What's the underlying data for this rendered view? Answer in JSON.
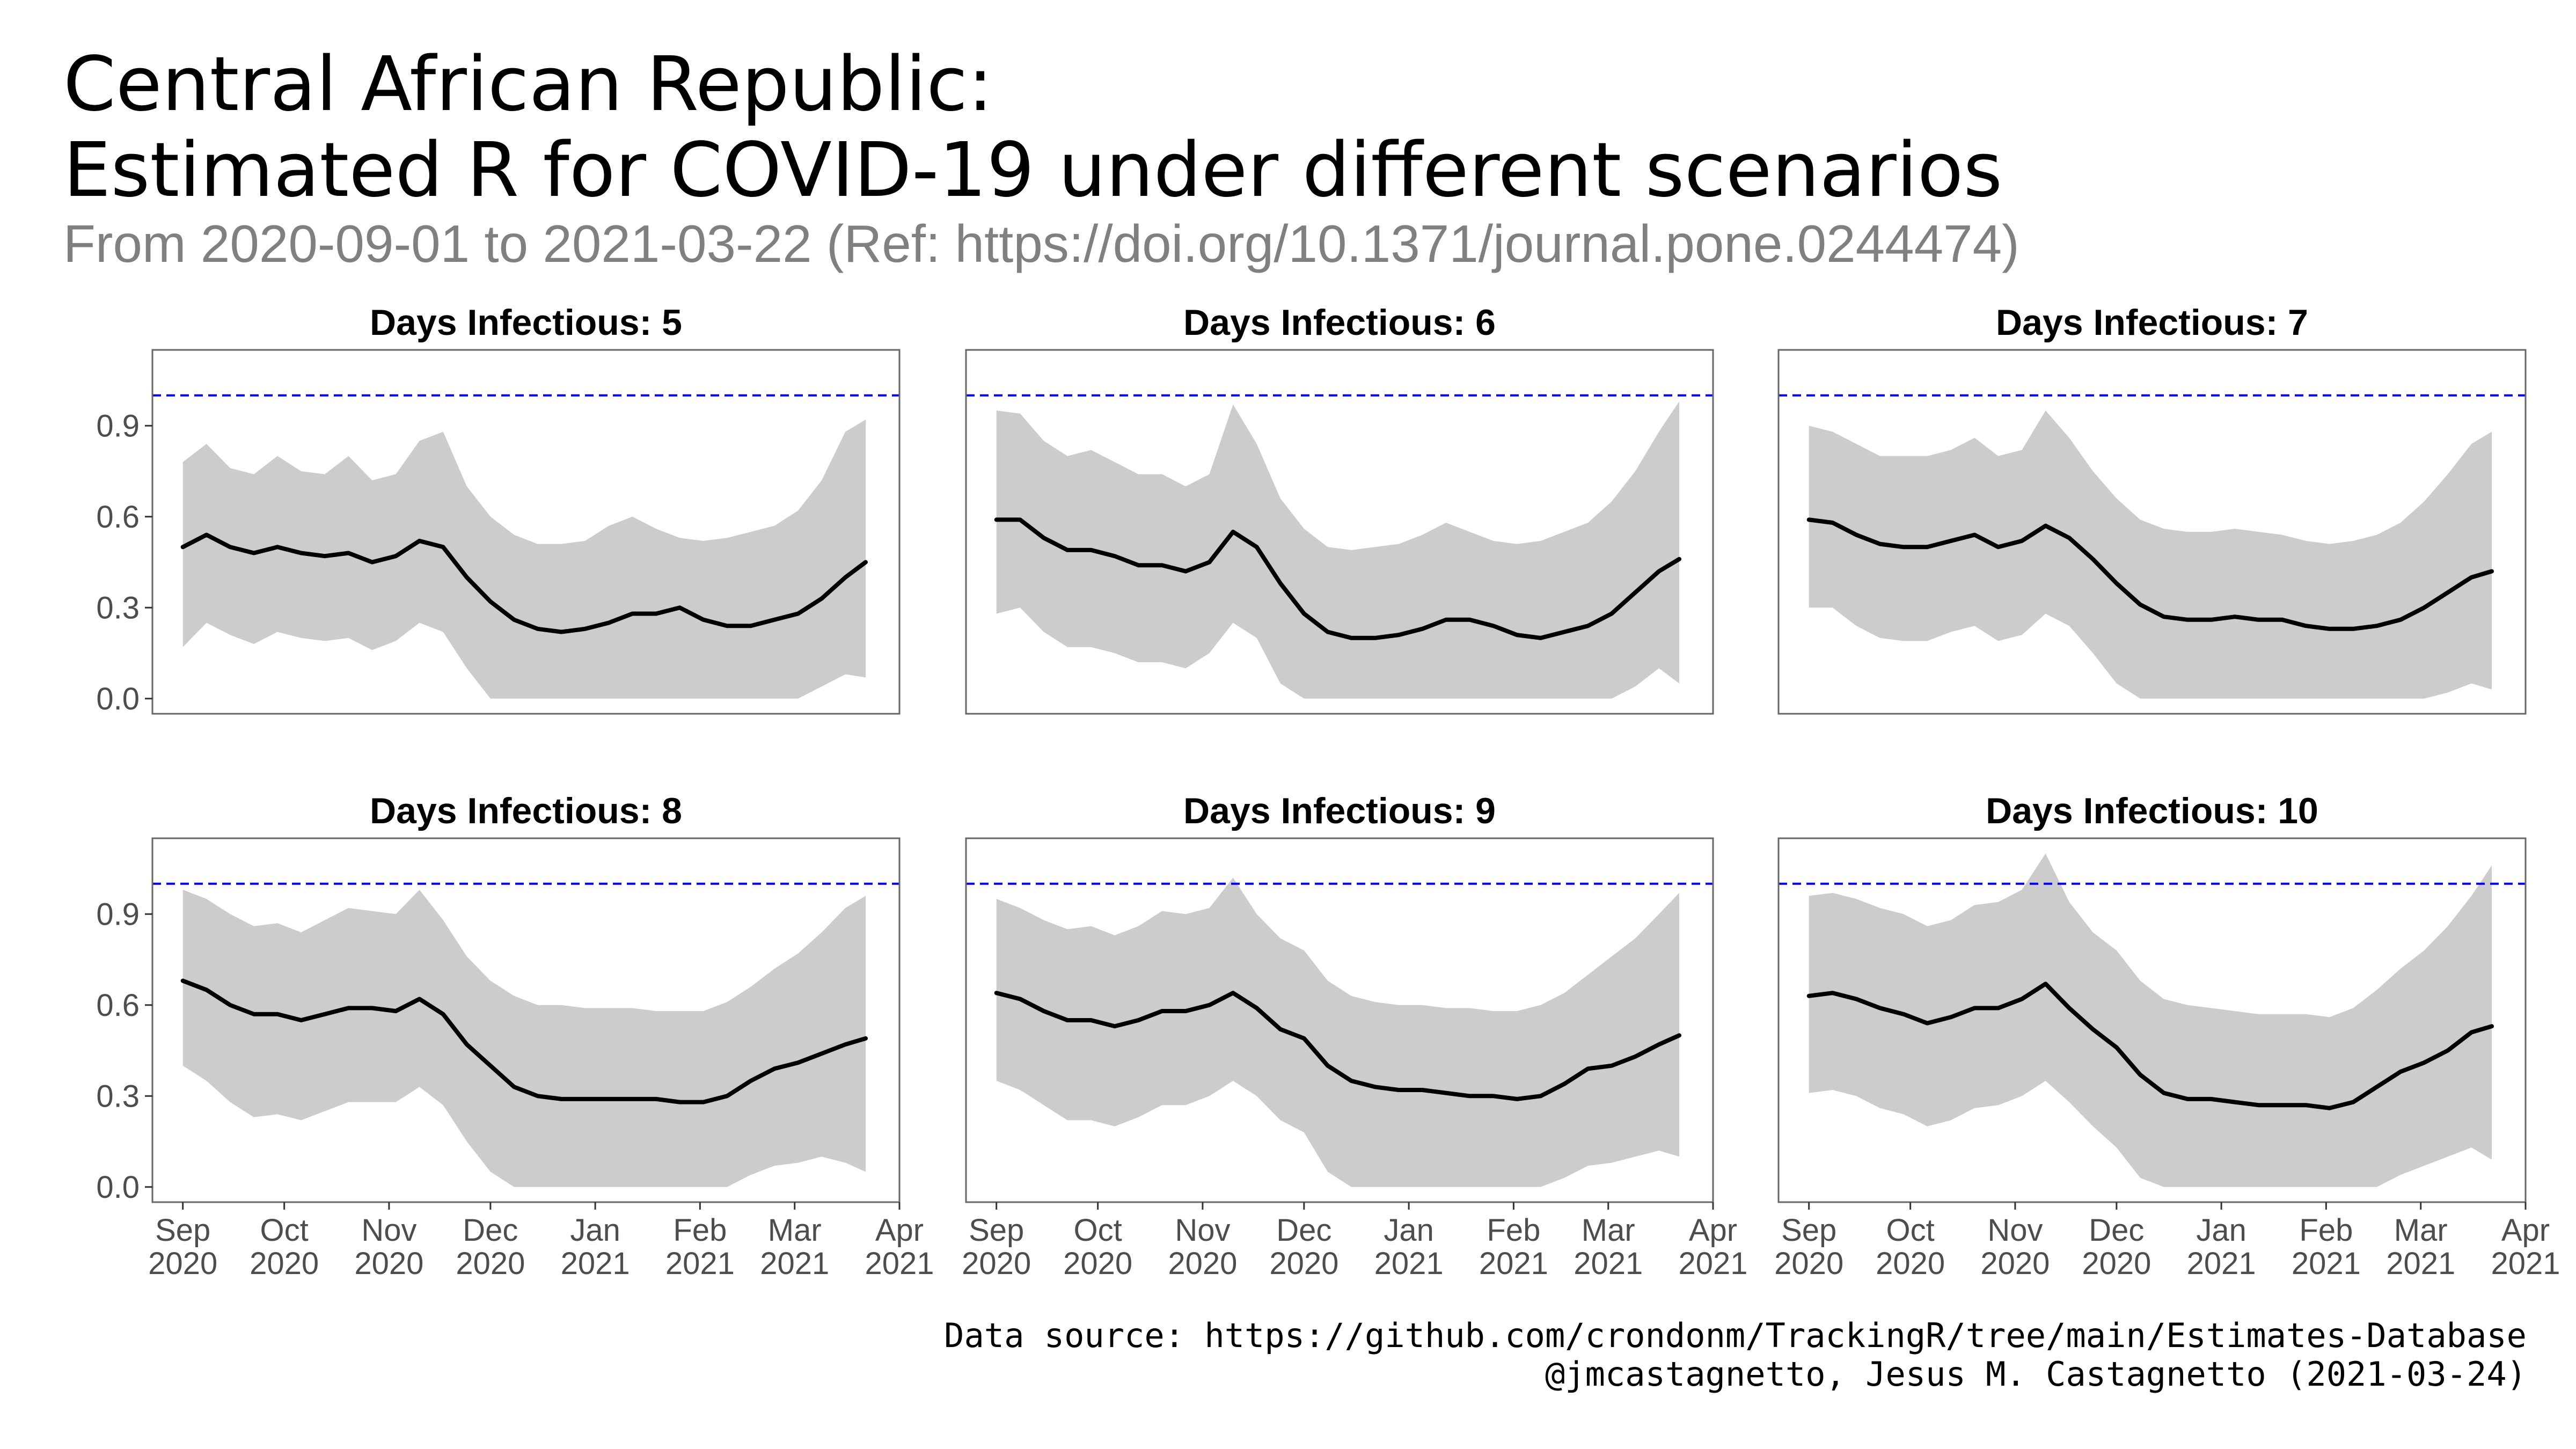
{
  "title_lines": [
    "Central African Republic:",
    "Estimated R for COVID-19 under different scenarios"
  ],
  "subtitle": "From 2020-09-01 to 2021-03-22 (Ref: https://doi.org/10.1371/journal.pone.0244474)",
  "caption_lines": [
    "Data source: https://github.com/crondonm/TrackingR/tree/main/Estimates-Database",
    "@jmcastagnetto, Jesus M. Castagnetto (2021-03-24)"
  ],
  "colors": {
    "band": "#cccccc",
    "line": "#000000",
    "reference": "#0000ff",
    "panel_border": "#666666"
  },
  "chart_data": {
    "type": "line",
    "facet_label_prefix": "Days Infectious: ",
    "reference_line": {
      "y": 1.0,
      "style": "dashed"
    },
    "x_range": [
      "2020-08-23",
      "2021-04-01"
    ],
    "y_range": [
      -0.05,
      1.15
    ],
    "y_ticks": [
      0.0,
      0.3,
      0.6,
      0.9
    ],
    "y_tick_labels": [
      "0.0",
      "0.3",
      "0.6",
      "0.9"
    ],
    "x_ticks": [
      "2020-09-01",
      "2020-10-01",
      "2020-11-01",
      "2020-12-01",
      "2021-01-01",
      "2021-02-01",
      "2021-03-01",
      "2021-04-01"
    ],
    "x_tick_labels": [
      [
        "Sep",
        "2020"
      ],
      [
        "Oct",
        "2020"
      ],
      [
        "Nov",
        "2020"
      ],
      [
        "Dec",
        "2020"
      ],
      [
        "Jan",
        "2021"
      ],
      [
        "Feb",
        "2021"
      ],
      [
        "Mar",
        "2021"
      ],
      [
        "Apr",
        "2021"
      ]
    ],
    "dates": [
      "2020-09-01",
      "2020-09-08",
      "2020-09-15",
      "2020-09-22",
      "2020-09-29",
      "2020-10-06",
      "2020-10-13",
      "2020-10-20",
      "2020-10-27",
      "2020-11-03",
      "2020-11-10",
      "2020-11-17",
      "2020-11-24",
      "2020-12-01",
      "2020-12-08",
      "2020-12-15",
      "2020-12-22",
      "2020-12-29",
      "2021-01-05",
      "2021-01-12",
      "2021-01-19",
      "2021-01-26",
      "2021-02-02",
      "2021-02-09",
      "2021-02-16",
      "2021-02-23",
      "2021-03-02",
      "2021-03-09",
      "2021-03-16",
      "2021-03-22"
    ],
    "panels": [
      {
        "days_infectious": "5",
        "show_x_axis": false,
        "show_y_axis": true,
        "r": [
          0.5,
          0.54,
          0.5,
          0.48,
          0.5,
          0.48,
          0.47,
          0.48,
          0.45,
          0.47,
          0.52,
          0.5,
          0.4,
          0.32,
          0.26,
          0.23,
          0.22,
          0.23,
          0.25,
          0.28,
          0.28,
          0.3,
          0.26,
          0.24,
          0.24,
          0.26,
          0.28,
          0.33,
          0.4,
          0.45
        ],
        "lower": [
          0.17,
          0.25,
          0.21,
          0.18,
          0.22,
          0.2,
          0.19,
          0.2,
          0.16,
          0.19,
          0.25,
          0.22,
          0.1,
          0.0,
          0.0,
          0.0,
          0.0,
          0.0,
          0.0,
          0.0,
          0.0,
          0.0,
          0.0,
          0.0,
          0.0,
          0.0,
          0.0,
          0.04,
          0.08,
          0.07
        ],
        "upper": [
          0.78,
          0.84,
          0.76,
          0.74,
          0.8,
          0.75,
          0.74,
          0.8,
          0.72,
          0.74,
          0.85,
          0.88,
          0.7,
          0.6,
          0.54,
          0.51,
          0.51,
          0.52,
          0.57,
          0.6,
          0.56,
          0.53,
          0.52,
          0.53,
          0.55,
          0.57,
          0.62,
          0.72,
          0.88,
          0.92
        ]
      },
      {
        "days_infectious": "6",
        "show_x_axis": false,
        "show_y_axis": false,
        "r": [
          0.59,
          0.59,
          0.53,
          0.49,
          0.49,
          0.47,
          0.44,
          0.44,
          0.42,
          0.45,
          0.55,
          0.5,
          0.38,
          0.28,
          0.22,
          0.2,
          0.2,
          0.21,
          0.23,
          0.26,
          0.26,
          0.24,
          0.21,
          0.2,
          0.22,
          0.24,
          0.28,
          0.35,
          0.42,
          0.46
        ],
        "lower": [
          0.28,
          0.3,
          0.22,
          0.17,
          0.17,
          0.15,
          0.12,
          0.12,
          0.1,
          0.15,
          0.25,
          0.2,
          0.05,
          0.0,
          0.0,
          0.0,
          0.0,
          0.0,
          0.0,
          0.0,
          0.0,
          0.0,
          0.0,
          0.0,
          0.0,
          0.0,
          0.0,
          0.04,
          0.1,
          0.05
        ],
        "upper": [
          0.95,
          0.94,
          0.85,
          0.8,
          0.82,
          0.78,
          0.74,
          0.74,
          0.7,
          0.74,
          0.97,
          0.84,
          0.66,
          0.56,
          0.5,
          0.49,
          0.5,
          0.51,
          0.54,
          0.58,
          0.55,
          0.52,
          0.51,
          0.52,
          0.55,
          0.58,
          0.65,
          0.75,
          0.88,
          0.98
        ]
      },
      {
        "days_infectious": "7",
        "show_x_axis": false,
        "show_y_axis": false,
        "r": [
          0.59,
          0.58,
          0.54,
          0.51,
          0.5,
          0.5,
          0.52,
          0.54,
          0.5,
          0.52,
          0.57,
          0.53,
          0.46,
          0.38,
          0.31,
          0.27,
          0.26,
          0.26,
          0.27,
          0.26,
          0.26,
          0.24,
          0.23,
          0.23,
          0.24,
          0.26,
          0.3,
          0.35,
          0.4,
          0.42
        ],
        "lower": [
          0.3,
          0.3,
          0.24,
          0.2,
          0.19,
          0.19,
          0.22,
          0.24,
          0.19,
          0.21,
          0.28,
          0.24,
          0.15,
          0.05,
          0.0,
          0.0,
          0.0,
          0.0,
          0.0,
          0.0,
          0.0,
          0.0,
          0.0,
          0.0,
          0.0,
          0.0,
          0.0,
          0.02,
          0.05,
          0.03
        ],
        "upper": [
          0.9,
          0.88,
          0.84,
          0.8,
          0.8,
          0.8,
          0.82,
          0.86,
          0.8,
          0.82,
          0.95,
          0.86,
          0.75,
          0.66,
          0.59,
          0.56,
          0.55,
          0.55,
          0.56,
          0.55,
          0.54,
          0.52,
          0.51,
          0.52,
          0.54,
          0.58,
          0.65,
          0.74,
          0.84,
          0.88
        ]
      },
      {
        "days_infectious": "8",
        "show_x_axis": true,
        "show_y_axis": true,
        "r": [
          0.68,
          0.65,
          0.6,
          0.57,
          0.57,
          0.55,
          0.57,
          0.59,
          0.59,
          0.58,
          0.62,
          0.57,
          0.47,
          0.4,
          0.33,
          0.3,
          0.29,
          0.29,
          0.29,
          0.29,
          0.29,
          0.28,
          0.28,
          0.3,
          0.35,
          0.39,
          0.41,
          0.44,
          0.47,
          0.49
        ],
        "lower": [
          0.4,
          0.35,
          0.28,
          0.23,
          0.24,
          0.22,
          0.25,
          0.28,
          0.28,
          0.28,
          0.33,
          0.27,
          0.15,
          0.05,
          0.0,
          0.0,
          0.0,
          0.0,
          0.0,
          0.0,
          0.0,
          0.0,
          0.0,
          0.0,
          0.04,
          0.07,
          0.08,
          0.1,
          0.08,
          0.05
        ],
        "upper": [
          0.98,
          0.95,
          0.9,
          0.86,
          0.87,
          0.84,
          0.88,
          0.92,
          0.91,
          0.9,
          0.98,
          0.88,
          0.76,
          0.68,
          0.63,
          0.6,
          0.6,
          0.59,
          0.59,
          0.59,
          0.58,
          0.58,
          0.58,
          0.61,
          0.66,
          0.72,
          0.77,
          0.84,
          0.92,
          0.96
        ]
      },
      {
        "days_infectious": "9",
        "show_x_axis": true,
        "show_y_axis": false,
        "r": [
          0.64,
          0.62,
          0.58,
          0.55,
          0.55,
          0.53,
          0.55,
          0.58,
          0.58,
          0.6,
          0.64,
          0.59,
          0.52,
          0.49,
          0.4,
          0.35,
          0.33,
          0.32,
          0.32,
          0.31,
          0.3,
          0.3,
          0.29,
          0.3,
          0.34,
          0.39,
          0.4,
          0.43,
          0.47,
          0.5
        ],
        "lower": [
          0.35,
          0.32,
          0.27,
          0.22,
          0.22,
          0.2,
          0.23,
          0.27,
          0.27,
          0.3,
          0.35,
          0.3,
          0.22,
          0.18,
          0.05,
          0.0,
          0.0,
          0.0,
          0.0,
          0.0,
          0.0,
          0.0,
          0.0,
          0.0,
          0.03,
          0.07,
          0.08,
          0.1,
          0.12,
          0.1
        ],
        "upper": [
          0.95,
          0.92,
          0.88,
          0.85,
          0.86,
          0.83,
          0.86,
          0.91,
          0.9,
          0.92,
          1.02,
          0.9,
          0.82,
          0.78,
          0.68,
          0.63,
          0.61,
          0.6,
          0.6,
          0.59,
          0.59,
          0.58,
          0.58,
          0.6,
          0.64,
          0.7,
          0.76,
          0.82,
          0.9,
          0.97
        ]
      },
      {
        "days_infectious": "10",
        "show_x_axis": true,
        "show_y_axis": false,
        "r": [
          0.63,
          0.64,
          0.62,
          0.59,
          0.57,
          0.54,
          0.56,
          0.59,
          0.59,
          0.62,
          0.67,
          0.59,
          0.52,
          0.46,
          0.37,
          0.31,
          0.29,
          0.29,
          0.28,
          0.27,
          0.27,
          0.27,
          0.26,
          0.28,
          0.33,
          0.38,
          0.41,
          0.45,
          0.51,
          0.53
        ],
        "lower": [
          0.31,
          0.32,
          0.3,
          0.26,
          0.24,
          0.2,
          0.22,
          0.26,
          0.27,
          0.3,
          0.35,
          0.28,
          0.2,
          0.13,
          0.03,
          0.0,
          0.0,
          0.0,
          0.0,
          0.0,
          0.0,
          0.0,
          0.0,
          0.0,
          0.0,
          0.04,
          0.07,
          0.1,
          0.13,
          0.09
        ],
        "upper": [
          0.96,
          0.97,
          0.95,
          0.92,
          0.9,
          0.86,
          0.88,
          0.93,
          0.94,
          0.98,
          1.1,
          0.94,
          0.84,
          0.78,
          0.68,
          0.62,
          0.6,
          0.59,
          0.58,
          0.57,
          0.57,
          0.57,
          0.56,
          0.59,
          0.65,
          0.72,
          0.78,
          0.86,
          0.96,
          1.06
        ]
      }
    ]
  }
}
